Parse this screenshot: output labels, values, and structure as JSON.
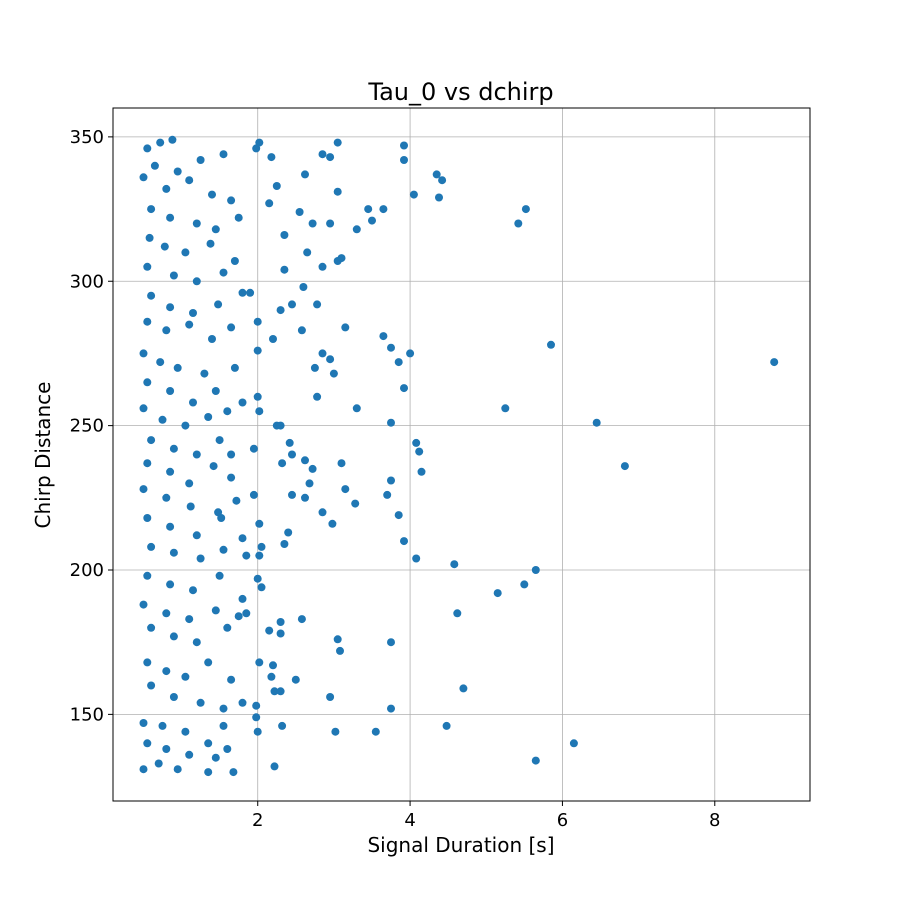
{
  "chart_data": {
    "type": "scatter",
    "title": "Tau_0 vs dchirp",
    "xlabel": "Signal Duration [s]",
    "ylabel": "Chirp Distance",
    "xlim": [
      0.1,
      9.25
    ],
    "ylim": [
      120,
      360
    ],
    "xticks": [
      2,
      4,
      6,
      8
    ],
    "yticks": [
      150,
      200,
      250,
      300,
      350
    ],
    "grid": true,
    "marker_color": "#1f77b4",
    "series": [
      {
        "points": [
          [
            0.55,
            346
          ],
          [
            0.72,
            348
          ],
          [
            0.88,
            349
          ],
          [
            0.65,
            340
          ],
          [
            0.95,
            338
          ],
          [
            1.25,
            342
          ],
          [
            1.55,
            344
          ],
          [
            1.98,
            346
          ],
          [
            2.02,
            348
          ],
          [
            2.18,
            343
          ],
          [
            2.62,
            337
          ],
          [
            3.05,
            348
          ],
          [
            3.92,
            347
          ],
          [
            3.92,
            342
          ],
          [
            4.35,
            337
          ],
          [
            4.42,
            335
          ],
          [
            2.85,
            344
          ],
          [
            2.95,
            343
          ],
          [
            0.5,
            336
          ],
          [
            0.8,
            332
          ],
          [
            1.1,
            335
          ],
          [
            1.4,
            330
          ],
          [
            1.65,
            328
          ],
          [
            2.25,
            333
          ],
          [
            3.05,
            331
          ],
          [
            4.05,
            330
          ],
          [
            4.38,
            329
          ],
          [
            0.6,
            325
          ],
          [
            0.85,
            322
          ],
          [
            1.2,
            320
          ],
          [
            1.45,
            318
          ],
          [
            1.75,
            322
          ],
          [
            2.15,
            327
          ],
          [
            2.55,
            324
          ],
          [
            2.72,
            320
          ],
          [
            3.45,
            325
          ],
          [
            3.65,
            325
          ],
          [
            5.52,
            325
          ],
          [
            5.42,
            320
          ],
          [
            3.5,
            321
          ],
          [
            3.3,
            318
          ],
          [
            2.95,
            320
          ],
          [
            0.58,
            315
          ],
          [
            0.78,
            312
          ],
          [
            1.05,
            310
          ],
          [
            1.38,
            313
          ],
          [
            1.7,
            307
          ],
          [
            2.35,
            316
          ],
          [
            2.65,
            310
          ],
          [
            3.05,
            307
          ],
          [
            3.1,
            308
          ],
          [
            2.85,
            305
          ],
          [
            0.55,
            305
          ],
          [
            0.9,
            302
          ],
          [
            1.2,
            300
          ],
          [
            1.55,
            303
          ],
          [
            1.9,
            296
          ],
          [
            2.35,
            304
          ],
          [
            2.6,
            298
          ],
          [
            2.78,
            292
          ],
          [
            0.6,
            295
          ],
          [
            0.85,
            291
          ],
          [
            1.15,
            289
          ],
          [
            1.48,
            292
          ],
          [
            1.8,
            296
          ],
          [
            2.3,
            290
          ],
          [
            2.45,
            292
          ],
          [
            0.55,
            286
          ],
          [
            0.8,
            283
          ],
          [
            1.1,
            285
          ],
          [
            1.4,
            280
          ],
          [
            1.65,
            284
          ],
          [
            2.0,
            286
          ],
          [
            2.2,
            280
          ],
          [
            2.58,
            283
          ],
          [
            3.15,
            284
          ],
          [
            3.65,
            281
          ],
          [
            3.75,
            277
          ],
          [
            4.0,
            275
          ],
          [
            3.85,
            272
          ],
          [
            5.85,
            278
          ],
          [
            8.78,
            272
          ],
          [
            0.5,
            275
          ],
          [
            0.72,
            272
          ],
          [
            0.95,
            270
          ],
          [
            1.3,
            268
          ],
          [
            1.7,
            270
          ],
          [
            2.0,
            276
          ],
          [
            2.85,
            275
          ],
          [
            2.95,
            273
          ],
          [
            3.0,
            268
          ],
          [
            2.75,
            270
          ],
          [
            0.55,
            265
          ],
          [
            0.85,
            262
          ],
          [
            1.15,
            258
          ],
          [
            1.45,
            262
          ],
          [
            1.8,
            258
          ],
          [
            2.0,
            260
          ],
          [
            2.02,
            255
          ],
          [
            2.78,
            260
          ],
          [
            3.3,
            256
          ],
          [
            3.92,
            263
          ],
          [
            5.25,
            256
          ],
          [
            0.5,
            256
          ],
          [
            0.75,
            252
          ],
          [
            1.05,
            250
          ],
          [
            1.35,
            253
          ],
          [
            1.6,
            255
          ],
          [
            2.25,
            250
          ],
          [
            2.3,
            250
          ],
          [
            3.75,
            251
          ],
          [
            6.45,
            251
          ],
          [
            0.6,
            245
          ],
          [
            0.9,
            242
          ],
          [
            1.2,
            240
          ],
          [
            1.5,
            245
          ],
          [
            1.65,
            240
          ],
          [
            1.95,
            242
          ],
          [
            2.42,
            244
          ],
          [
            2.45,
            240
          ],
          [
            4.08,
            244
          ],
          [
            4.12,
            241
          ],
          [
            0.55,
            237
          ],
          [
            0.85,
            234
          ],
          [
            1.1,
            230
          ],
          [
            1.42,
            236
          ],
          [
            1.65,
            232
          ],
          [
            2.32,
            237
          ],
          [
            2.62,
            238
          ],
          [
            2.72,
            235
          ],
          [
            2.68,
            230
          ],
          [
            3.1,
            237
          ],
          [
            3.75,
            231
          ],
          [
            4.15,
            234
          ],
          [
            6.82,
            236
          ],
          [
            0.5,
            228
          ],
          [
            0.8,
            225
          ],
          [
            1.12,
            222
          ],
          [
            1.48,
            220
          ],
          [
            1.72,
            224
          ],
          [
            1.95,
            226
          ],
          [
            2.45,
            226
          ],
          [
            2.62,
            225
          ],
          [
            2.85,
            220
          ],
          [
            3.15,
            228
          ],
          [
            3.28,
            223
          ],
          [
            3.7,
            226
          ],
          [
            3.85,
            219
          ],
          [
            0.55,
            218
          ],
          [
            0.85,
            215
          ],
          [
            1.2,
            212
          ],
          [
            1.52,
            218
          ],
          [
            1.8,
            211
          ],
          [
            2.02,
            216
          ],
          [
            2.4,
            213
          ],
          [
            2.35,
            209
          ],
          [
            2.98,
            216
          ],
          [
            0.6,
            208
          ],
          [
            0.9,
            206
          ],
          [
            1.25,
            204
          ],
          [
            1.55,
            207
          ],
          [
            1.85,
            205
          ],
          [
            2.02,
            205
          ],
          [
            2.05,
            208
          ],
          [
            3.92,
            210
          ],
          [
            4.08,
            204
          ],
          [
            4.58,
            202
          ],
          [
            0.55,
            198
          ],
          [
            0.85,
            195
          ],
          [
            1.15,
            193
          ],
          [
            1.5,
            198
          ],
          [
            1.8,
            190
          ],
          [
            2.0,
            197
          ],
          [
            2.05,
            194
          ],
          [
            5.5,
            195
          ],
          [
            5.65,
            200
          ],
          [
            5.15,
            192
          ],
          [
            0.5,
            188
          ],
          [
            0.8,
            185
          ],
          [
            1.1,
            183
          ],
          [
            1.45,
            186
          ],
          [
            1.75,
            184
          ],
          [
            2.3,
            182
          ],
          [
            2.58,
            183
          ],
          [
            4.62,
            185
          ],
          [
            0.6,
            180
          ],
          [
            0.9,
            177
          ],
          [
            1.2,
            175
          ],
          [
            1.6,
            180
          ],
          [
            1.85,
            185
          ],
          [
            2.15,
            179
          ],
          [
            2.3,
            178
          ],
          [
            3.05,
            176
          ],
          [
            3.08,
            172
          ],
          [
            3.75,
            175
          ],
          [
            0.55,
            168
          ],
          [
            0.8,
            165
          ],
          [
            1.05,
            163
          ],
          [
            1.35,
            168
          ],
          [
            1.65,
            162
          ],
          [
            2.02,
            168
          ],
          [
            2.2,
            167
          ],
          [
            2.18,
            163
          ],
          [
            2.22,
            158
          ],
          [
            2.5,
            162
          ],
          [
            2.3,
            158
          ],
          [
            4.7,
            159
          ],
          [
            0.6,
            160
          ],
          [
            0.9,
            156
          ],
          [
            1.25,
            154
          ],
          [
            1.55,
            152
          ],
          [
            1.8,
            154
          ],
          [
            1.98,
            153
          ],
          [
            2.95,
            156
          ],
          [
            3.75,
            152
          ],
          [
            0.5,
            147
          ],
          [
            0.75,
            146
          ],
          [
            1.05,
            144
          ],
          [
            1.35,
            140
          ],
          [
            1.55,
            146
          ],
          [
            1.98,
            149
          ],
          [
            2.0,
            144
          ],
          [
            2.32,
            146
          ],
          [
            3.02,
            144
          ],
          [
            3.55,
            144
          ],
          [
            4.48,
            146
          ],
          [
            6.15,
            140
          ],
          [
            0.55,
            140
          ],
          [
            0.8,
            138
          ],
          [
            1.1,
            136
          ],
          [
            1.45,
            135
          ],
          [
            1.6,
            138
          ],
          [
            0.5,
            131
          ],
          [
            0.7,
            133
          ],
          [
            0.95,
            131
          ],
          [
            1.35,
            130
          ],
          [
            1.68,
            130
          ],
          [
            2.22,
            132
          ],
          [
            5.65,
            134
          ]
        ]
      }
    ]
  }
}
